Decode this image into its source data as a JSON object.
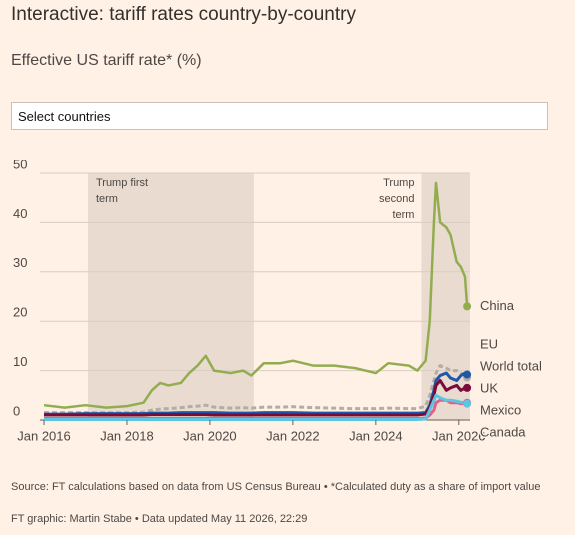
{
  "chart_data": {
    "type": "line",
    "title": "Interactive: tariff rates country-by-country",
    "subtitle": "Effective US tariff rate* (%)",
    "select_placeholder": "Select countries",
    "x": [
      2016,
      2016.5,
      2017,
      2017.5,
      2018,
      2018.4,
      2018.6,
      2018.8,
      2019,
      2019.3,
      2019.5,
      2019.7,
      2019.9,
      2020.1,
      2020.5,
      2020.8,
      2021,
      2021.3,
      2021.7,
      2022,
      2022.5,
      2023,
      2023.5,
      2024,
      2024.3,
      2024.8,
      2025,
      2025.2,
      2025.3,
      2025.4,
      2025.45,
      2025.55,
      2025.7,
      2025.8,
      2025.95,
      2026.05,
      2026.15,
      2026.2
    ],
    "series": [
      {
        "name": "China",
        "color": "#92ad50",
        "values": [
          3,
          2.5,
          3,
          2.5,
          2.8,
          3.5,
          6,
          7.5,
          7,
          7.5,
          9.5,
          11,
          13,
          10,
          9.5,
          10,
          9,
          11.5,
          11.5,
          12,
          11,
          11,
          10.5,
          9.5,
          11.5,
          11,
          10,
          12,
          20,
          40,
          48,
          40,
          39,
          37.5,
          32,
          31,
          29,
          23
        ]
      },
      {
        "name": "World total",
        "color": "#b5aca4",
        "dashed": true,
        "values": [
          1.5,
          1.5,
          1.5,
          1.5,
          1.5,
          1.6,
          2,
          2.2,
          2.3,
          2.5,
          2.7,
          2.8,
          3,
          2.6,
          2.4,
          2.5,
          2.4,
          2.6,
          2.6,
          2.7,
          2.5,
          2.4,
          2.3,
          2.3,
          2.4,
          2.3,
          2.3,
          2.8,
          5,
          8,
          9.5,
          11,
          10.5,
          10,
          10,
          9.5,
          9,
          8.6
        ]
      },
      {
        "name": "EU",
        "color": "#1f59a5",
        "values": [
          1.2,
          1.2,
          1.3,
          1.3,
          1.3,
          1.3,
          1.4,
          1.4,
          1.4,
          1.5,
          1.5,
          1.5,
          1.5,
          1.5,
          1.4,
          1.4,
          1.4,
          1.5,
          1.5,
          1.5,
          1.4,
          1.4,
          1.4,
          1.4,
          1.4,
          1.4,
          1.4,
          1.5,
          3,
          6,
          8,
          9,
          9.5,
          8.5,
          8,
          9,
          9.5,
          9.2
        ]
      },
      {
        "name": "UK",
        "color": "#7b0a3a",
        "values": [
          1,
          1,
          1,
          1,
          1,
          1,
          1.1,
          1.1,
          1.1,
          1.1,
          1.1,
          1.1,
          1.1,
          1,
          1,
          1,
          1,
          1,
          1,
          1,
          1,
          1,
          1,
          1,
          1,
          1,
          1,
          1.2,
          2.5,
          5,
          7,
          8,
          6,
          6.5,
          7,
          6,
          6.5,
          6.5
        ]
      },
      {
        "name": "Mexico",
        "color": "#e0618d",
        "values": [
          0.3,
          0.3,
          0.3,
          0.3,
          0.3,
          0.3,
          0.3,
          0.3,
          0.3,
          0.3,
          0.3,
          0.3,
          0.3,
          0.3,
          0.3,
          0.3,
          0.3,
          0.3,
          0.3,
          0.3,
          0.3,
          0.3,
          0.3,
          0.3,
          0.3,
          0.3,
          0.3,
          0.4,
          1,
          2,
          3.5,
          4,
          4,
          3.5,
          3.5,
          3.3,
          3.4,
          3.5
        ]
      },
      {
        "name": "Canada",
        "color": "#5bc6e0",
        "values": [
          0.1,
          0.1,
          0.1,
          0.1,
          0.1,
          0.1,
          0.1,
          0.1,
          0.1,
          0.1,
          0.1,
          0.1,
          0.1,
          0.1,
          0.1,
          0.1,
          0.1,
          0.1,
          0.1,
          0.1,
          0.1,
          0.1,
          0.1,
          0.1,
          0.1,
          0.1,
          0.1,
          0.2,
          2,
          4,
          5,
          4.5,
          4,
          4,
          3.8,
          3.6,
          3.5,
          3.3
        ]
      }
    ],
    "shaded_regions": [
      {
        "label": "Trump first term",
        "start": 2017.06,
        "end": 2021.06
      },
      {
        "label": "Trump second term",
        "start": 2025.1,
        "end": 2026.27
      }
    ],
    "xlim": [
      2016,
      2026.27
    ],
    "xticks": [
      {
        "value": 2016,
        "label": "Jan 2016"
      },
      {
        "value": 2018,
        "label": "Jan 2018"
      },
      {
        "value": 2020,
        "label": "Jan 2020"
      },
      {
        "value": 2022,
        "label": "Jan 2022"
      },
      {
        "value": 2024,
        "label": "Jan 2024"
      },
      {
        "value": 2026,
        "label": "Jan 2026"
      }
    ],
    "ylim": [
      0,
      50
    ],
    "yticks": [
      0,
      10,
      20,
      30,
      40,
      50
    ],
    "grid": true,
    "source": "Source: FT calculations based on data from US Census Bureau • *Calculated duty as a share of import value",
    "credit": "FT graphic: Martin Stabe • Data updated May 11 2026, 22:29"
  }
}
